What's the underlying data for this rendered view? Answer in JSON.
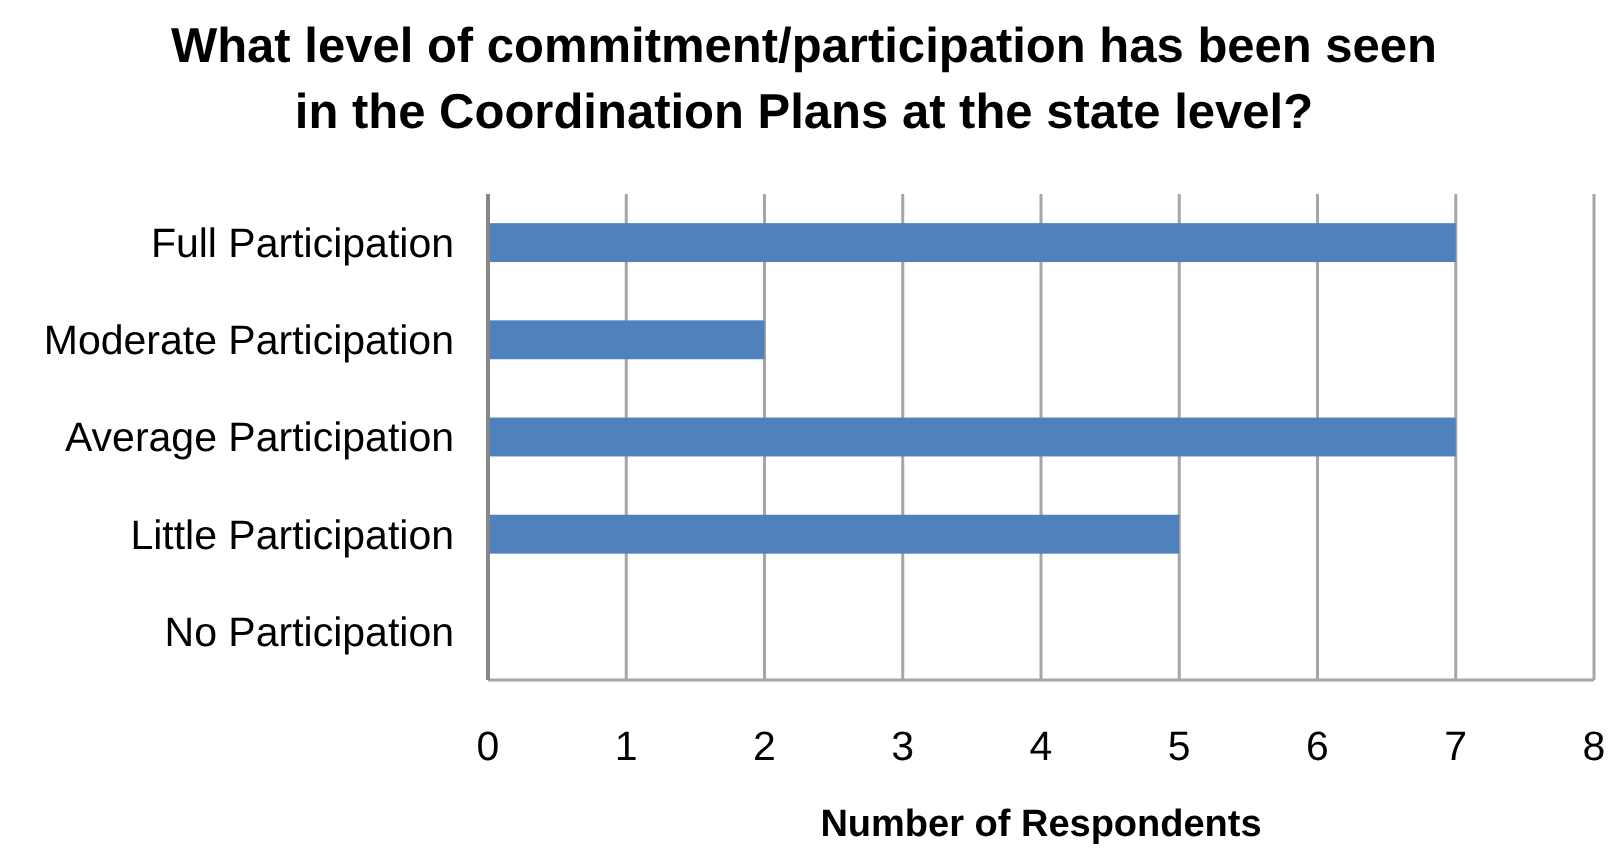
{
  "chart_data": {
    "type": "bar",
    "orientation": "horizontal",
    "title": "What level of commitment/participation has been seen in the Coordination Plans at the state level?",
    "xlabel": "Number of Respondents",
    "categories": [
      "Full Participation",
      "Moderate Participation",
      "Average Participation",
      "Little Participation",
      "No Participation"
    ],
    "values": [
      7,
      2,
      7,
      5,
      0
    ],
    "color": "#4f81bd",
    "xlim": [
      0,
      8
    ],
    "xticks": [
      0,
      1,
      2,
      3,
      4,
      5,
      6,
      7,
      8
    ],
    "grid": "x"
  }
}
